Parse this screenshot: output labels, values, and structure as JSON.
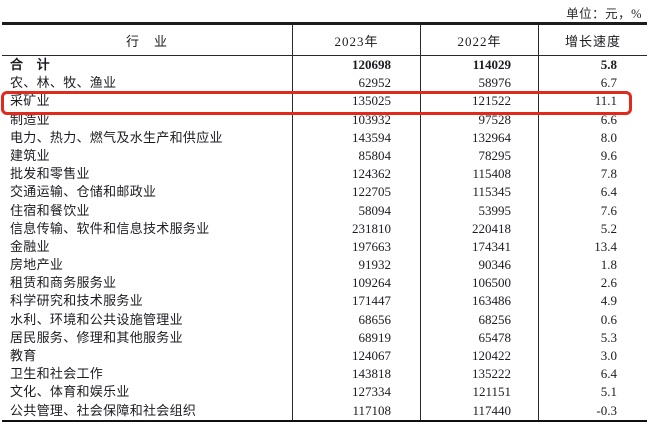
{
  "meta": {
    "unit_label": "单位：元，%"
  },
  "highlight": {
    "color": "#e02a1e",
    "target_row": "采矿业"
  },
  "table": {
    "headers": {
      "industry": "行　业",
      "y2023": "2023年",
      "y2022": "2022年",
      "growth": "增长速度"
    },
    "rows": [
      {
        "industry": "合　计",
        "y2023": "120698",
        "y2022": "114029",
        "growth": "5.8",
        "bold": true,
        "highlighted": false
      },
      {
        "industry": "农、林、牧、渔业",
        "y2023": "62952",
        "y2022": "58976",
        "growth": "6.7",
        "bold": false,
        "highlighted": false
      },
      {
        "industry": "采矿业",
        "y2023": "135025",
        "y2022": "121522",
        "growth": "11.1",
        "bold": false,
        "highlighted": true
      },
      {
        "industry": "制造业",
        "y2023": "103932",
        "y2022": "97528",
        "growth": "6.6",
        "bold": false,
        "highlighted": false
      },
      {
        "industry": "电力、热力、燃气及水生产和供应业",
        "y2023": "143594",
        "y2022": "132964",
        "growth": "8.0",
        "bold": false,
        "highlighted": false
      },
      {
        "industry": "建筑业",
        "y2023": "85804",
        "y2022": "78295",
        "growth": "9.6",
        "bold": false,
        "highlighted": false
      },
      {
        "industry": "批发和零售业",
        "y2023": "124362",
        "y2022": "115408",
        "growth": "7.8",
        "bold": false,
        "highlighted": false
      },
      {
        "industry": "交通运输、仓储和邮政业",
        "y2023": "122705",
        "y2022": "115345",
        "growth": "6.4",
        "bold": false,
        "highlighted": false
      },
      {
        "industry": "住宿和餐饮业",
        "y2023": "58094",
        "y2022": "53995",
        "growth": "7.6",
        "bold": false,
        "highlighted": false
      },
      {
        "industry": "信息传输、软件和信息技术服务业",
        "y2023": "231810",
        "y2022": "220418",
        "growth": "5.2",
        "bold": false,
        "highlighted": false
      },
      {
        "industry": "金融业",
        "y2023": "197663",
        "y2022": "174341",
        "growth": "13.4",
        "bold": false,
        "highlighted": false
      },
      {
        "industry": "房地产业",
        "y2023": "91932",
        "y2022": "90346",
        "growth": "1.8",
        "bold": false,
        "highlighted": false
      },
      {
        "industry": "租赁和商务服务业",
        "y2023": "109264",
        "y2022": "106500",
        "growth": "2.6",
        "bold": false,
        "highlighted": false
      },
      {
        "industry": "科学研究和技术服务业",
        "y2023": "171447",
        "y2022": "163486",
        "growth": "4.9",
        "bold": false,
        "highlighted": false
      },
      {
        "industry": "水利、环境和公共设施管理业",
        "y2023": "68656",
        "y2022": "68256",
        "growth": "0.6",
        "bold": false,
        "highlighted": false
      },
      {
        "industry": "居民服务、修理和其他服务业",
        "y2023": "68919",
        "y2022": "65478",
        "growth": "5.3",
        "bold": false,
        "highlighted": false
      },
      {
        "industry": "教育",
        "y2023": "124067",
        "y2022": "120422",
        "growth": "3.0",
        "bold": false,
        "highlighted": false
      },
      {
        "industry": "卫生和社会工作",
        "y2023": "143818",
        "y2022": "135222",
        "growth": "6.4",
        "bold": false,
        "highlighted": false
      },
      {
        "industry": "文化、体育和娱乐业",
        "y2023": "127334",
        "y2022": "121151",
        "growth": "5.1",
        "bold": false,
        "highlighted": false
      },
      {
        "industry": "公共管理、社会保障和社会组织",
        "y2023": "117108",
        "y2022": "117440",
        "growth": "-0.3",
        "bold": false,
        "highlighted": false
      }
    ]
  }
}
